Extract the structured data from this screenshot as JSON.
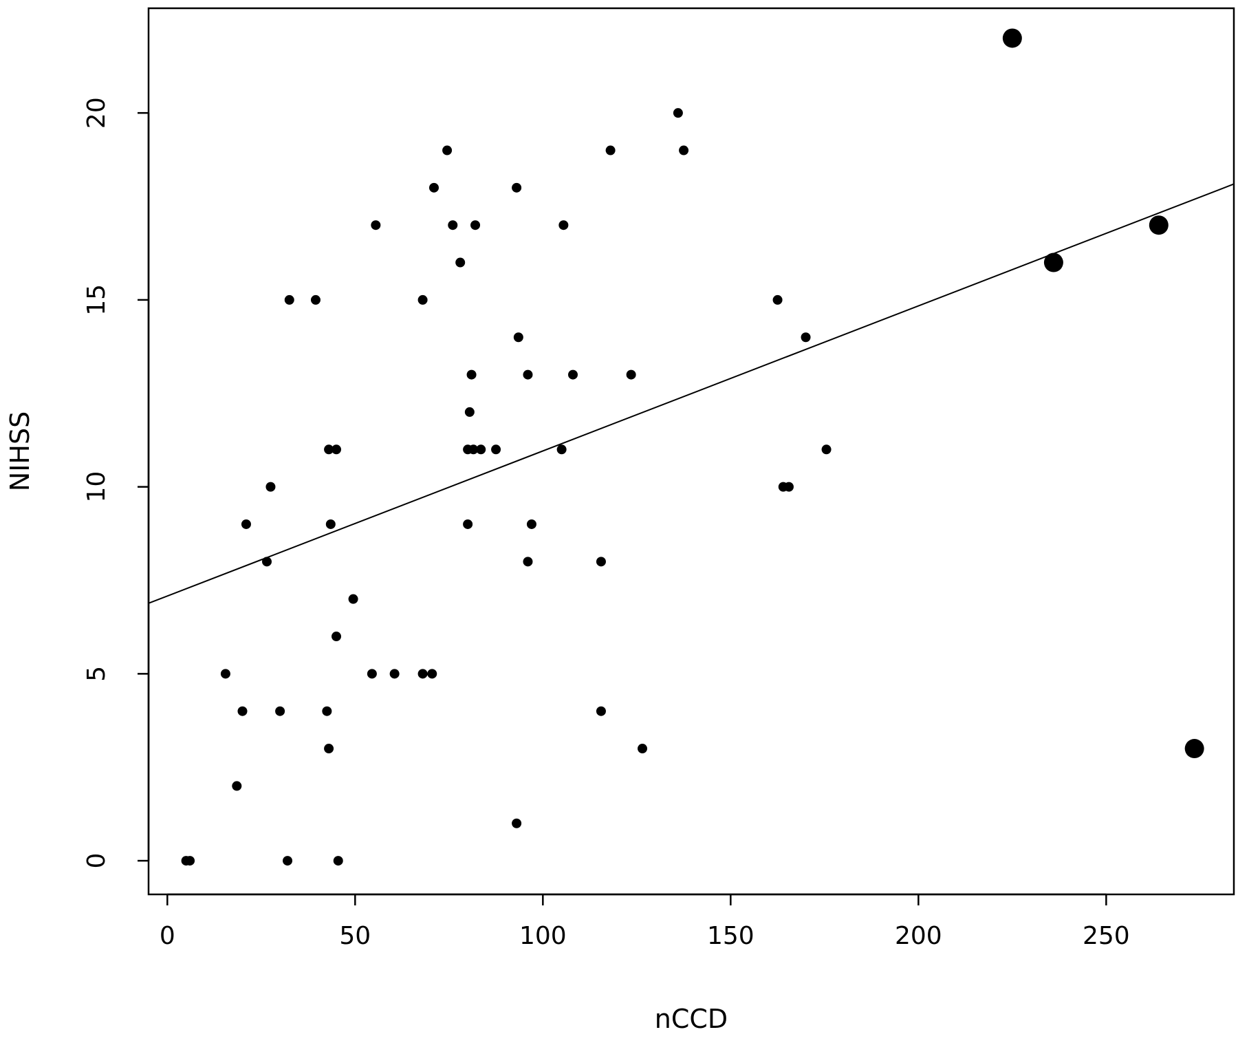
{
  "chart_data": {
    "type": "scatter",
    "title": "",
    "xlabel": "nCCD",
    "ylabel": "NIHSS",
    "xlim": [
      -5,
      284
    ],
    "ylim": [
      -0.9,
      22.8
    ],
    "xticks": [
      0,
      50,
      100,
      150,
      200,
      250
    ],
    "yticks": [
      0,
      5,
      10,
      15,
      20
    ],
    "grid": false,
    "legend": "none",
    "point_color": "#000000",
    "points": [
      {
        "x": 5,
        "y": 0
      },
      {
        "x": 6,
        "y": 0
      },
      {
        "x": 32,
        "y": 0
      },
      {
        "x": 45.5,
        "y": 0
      },
      {
        "x": 93,
        "y": 1
      },
      {
        "x": 18.5,
        "y": 2
      },
      {
        "x": 43,
        "y": 3
      },
      {
        "x": 126.5,
        "y": 3
      },
      {
        "x": 20,
        "y": 4
      },
      {
        "x": 30,
        "y": 4
      },
      {
        "x": 42.5,
        "y": 4
      },
      {
        "x": 115.5,
        "y": 4
      },
      {
        "x": 15.5,
        "y": 5
      },
      {
        "x": 54.5,
        "y": 5
      },
      {
        "x": 60.5,
        "y": 5
      },
      {
        "x": 68,
        "y": 5
      },
      {
        "x": 70.5,
        "y": 5
      },
      {
        "x": 45,
        "y": 6
      },
      {
        "x": 49.5,
        "y": 7
      },
      {
        "x": 26.5,
        "y": 8
      },
      {
        "x": 96,
        "y": 8
      },
      {
        "x": 115.5,
        "y": 8
      },
      {
        "x": 21,
        "y": 9
      },
      {
        "x": 43.5,
        "y": 9
      },
      {
        "x": 80,
        "y": 9
      },
      {
        "x": 97,
        "y": 9
      },
      {
        "x": 27.5,
        "y": 10
      },
      {
        "x": 164,
        "y": 10
      },
      {
        "x": 165.5,
        "y": 10
      },
      {
        "x": 43,
        "y": 11
      },
      {
        "x": 45,
        "y": 11
      },
      {
        "x": 80,
        "y": 11
      },
      {
        "x": 81.5,
        "y": 11
      },
      {
        "x": 83.5,
        "y": 11
      },
      {
        "x": 87.5,
        "y": 11
      },
      {
        "x": 105,
        "y": 11
      },
      {
        "x": 175.5,
        "y": 11
      },
      {
        "x": 80.5,
        "y": 12
      },
      {
        "x": 81,
        "y": 13
      },
      {
        "x": 96,
        "y": 13
      },
      {
        "x": 108,
        "y": 13
      },
      {
        "x": 123.5,
        "y": 13
      },
      {
        "x": 93.5,
        "y": 14
      },
      {
        "x": 170,
        "y": 14
      },
      {
        "x": 32.5,
        "y": 15
      },
      {
        "x": 39.5,
        "y": 15
      },
      {
        "x": 68,
        "y": 15
      },
      {
        "x": 162.5,
        "y": 15
      },
      {
        "x": 78,
        "y": 16
      },
      {
        "x": 55.5,
        "y": 17
      },
      {
        "x": 76,
        "y": 17
      },
      {
        "x": 82,
        "y": 17
      },
      {
        "x": 105.5,
        "y": 17
      },
      {
        "x": 71,
        "y": 18
      },
      {
        "x": 93,
        "y": 18
      },
      {
        "x": 74.5,
        "y": 19
      },
      {
        "x": 118,
        "y": 19
      },
      {
        "x": 137.5,
        "y": 19
      },
      {
        "x": 136,
        "y": 20
      }
    ],
    "highlighted_points": [
      {
        "x": 225,
        "y": 22
      },
      {
        "x": 236,
        "y": 16
      },
      {
        "x": 264,
        "y": 17
      },
      {
        "x": 273.5,
        "y": 3
      }
    ],
    "regression_line": {
      "intercept": 7.08,
      "slope": 0.0388
    }
  }
}
